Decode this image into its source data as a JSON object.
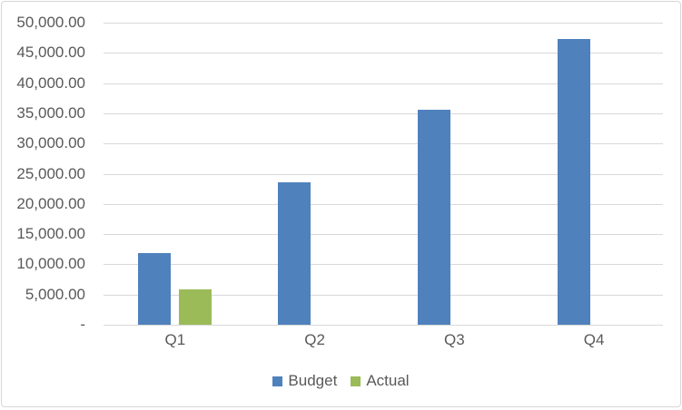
{
  "chart_data": {
    "type": "bar",
    "title": "",
    "xlabel": "",
    "ylabel": "",
    "categories": [
      "Q1",
      "Q2",
      "Q3",
      "Q4"
    ],
    "series": [
      {
        "name": "Budget",
        "color": "#4F81BD",
        "values": [
          11850,
          23600,
          35650,
          47250
        ]
      },
      {
        "name": "Actual",
        "color": "#9BBB59",
        "values": [
          5850,
          0,
          0,
          0
        ]
      }
    ],
    "ylim": [
      0,
      50000
    ],
    "y_tick_step": 5000,
    "y_tick_labels_top_to_bottom": [
      "50,000.00",
      "45,000.00",
      "40,000.00",
      "35,000.00",
      "30,000.00",
      "25,000.00",
      "20,000.00",
      "15,000.00",
      "10,000.00",
      "5,000.00",
      "-"
    ],
    "grid": true,
    "legend_position": "bottom",
    "legend_items": [
      {
        "label": "Budget",
        "color": "#4F81BD"
      },
      {
        "label": "Actual",
        "color": "#9BBB59"
      }
    ]
  },
  "colors": {
    "budget_bar": "#4F81BD",
    "actual_bar": "#9BBB59",
    "gridline": "#D9D9D9",
    "axis_text": "#595959",
    "frame_border": "#D7D7D7",
    "background": "#FFFFFF"
  }
}
